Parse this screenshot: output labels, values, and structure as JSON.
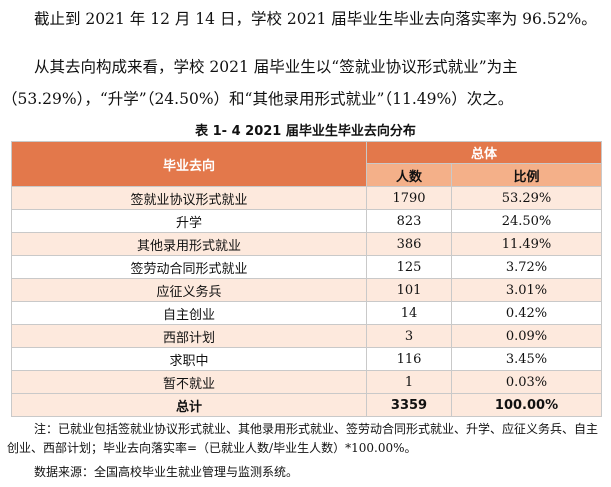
{
  "intro": {
    "line1": "截止到 2021 年 12 月 14 日，学校 2021 届毕业生毕业去向落实率为 96.52%。",
    "line2a": "从其去向构成来看，学校 2021 届毕业生以“签就业协议形式就业”为主",
    "line2b": "（53.29%），“升学”（24.50%）和“其他录用形式就业”（11.49%）次之。"
  },
  "table": {
    "caption": "表 1- 4    2021 届毕业生毕业去向分布",
    "header_destination": "毕业去向",
    "header_total": "总体",
    "header_count": "人数",
    "header_ratio": "比例",
    "rows": [
      {
        "destination": "签就业协议形式就业",
        "count": "1790",
        "ratio": "53.29%"
      },
      {
        "destination": "升学",
        "count": "823",
        "ratio": "24.50%"
      },
      {
        "destination": "其他录用形式就业",
        "count": "386",
        "ratio": "11.49%"
      },
      {
        "destination": "签劳动合同形式就业",
        "count": "125",
        "ratio": "3.72%"
      },
      {
        "destination": "应征义务兵",
        "count": "101",
        "ratio": "3.01%"
      },
      {
        "destination": "自主创业",
        "count": "14",
        "ratio": "0.42%"
      },
      {
        "destination": "西部计划",
        "count": "3",
        "ratio": "0.09%"
      },
      {
        "destination": "求职中",
        "count": "116",
        "ratio": "3.45%"
      },
      {
        "destination": "暂不就业",
        "count": "1",
        "ratio": "0.03%"
      }
    ],
    "sum": {
      "label": "总计",
      "count": "3359",
      "ratio": "100.00%"
    }
  },
  "notes": {
    "note_line1": "注：已就业包括签就业协议形式就业、其他录用形式就业、签劳动合同形式就业、升学、应征义务兵、自主",
    "note_line2": "创业、西部计划；毕业去向落实率=（已就业人数/毕业生人数）*100.00%。",
    "source": "数据来源：全国高校毕业生就业管理与监测系统。"
  }
}
